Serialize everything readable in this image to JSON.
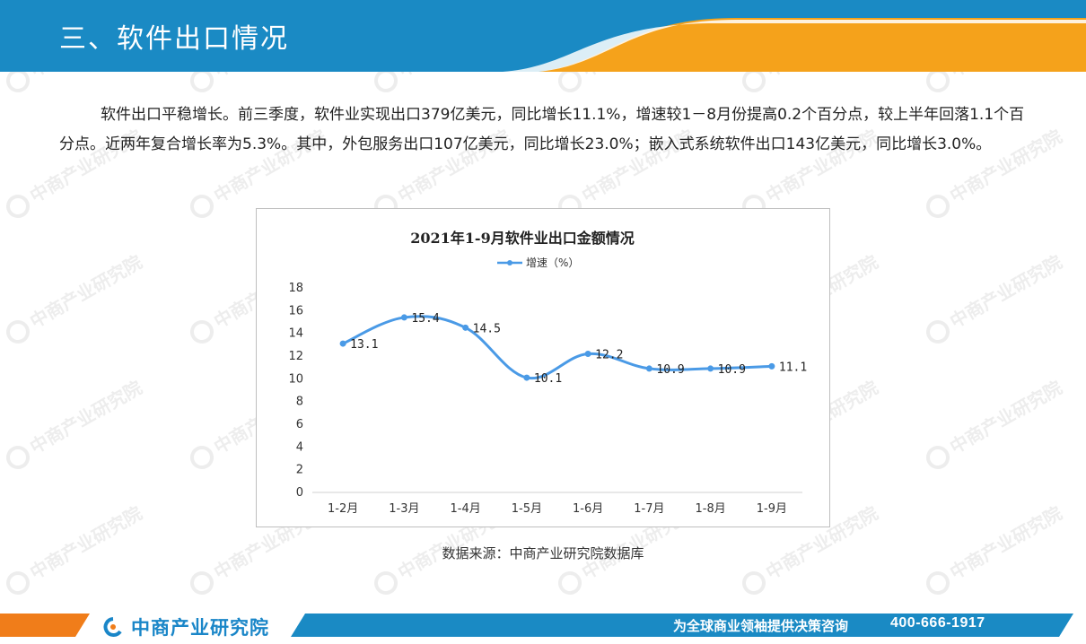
{
  "header": {
    "title": "三、软件出口情况",
    "colors": {
      "bar": "#1a8ac4",
      "accent": "#f5a21b"
    }
  },
  "intro": {
    "text": "软件出口平稳增长。前三季度，软件业实现出口379亿美元，同比增长11.1%，增速较1－8月份提高0.2个百分点，较上半年回落1.1个百分点。近两年复合增长率为5.3%。其中，外包服务出口107亿美元，同比增长23.0%；嵌入式系统软件出口143亿美元，同比增长3.0%。"
  },
  "chart_data": {
    "type": "line",
    "title": "2021年1-9月软件业出口金额情况",
    "categories": [
      "1-2月",
      "1-3月",
      "1-4月",
      "1-5月",
      "1-6月",
      "1-7月",
      "1-8月",
      "1-9月"
    ],
    "series": [
      {
        "name": "增速（%）",
        "values": [
          13.1,
          15.4,
          14.5,
          10.1,
          12.2,
          10.9,
          10.9,
          11.1
        ],
        "color": "#4a9ae6"
      }
    ],
    "data_labels": [
      "13.1",
      "15.4",
      "14.5",
      "10.1",
      "12.2",
      "10.9",
      "10.9",
      "11.1"
    ],
    "y_ticks": [
      "0",
      "2",
      "4",
      "6",
      "8",
      "10",
      "12",
      "14",
      "16",
      "18"
    ],
    "ylim": [
      0,
      18
    ],
    "grid": false,
    "legend_position": "top-center",
    "smooth": true
  },
  "source": {
    "text": "数据来源：中商产业研究院数据库"
  },
  "footer": {
    "brand": "中商产业研究院",
    "slogan": "为全球商业领袖提供决策咨询",
    "phone": "400-666-1917",
    "colors": {
      "bar": "#1a8ac4",
      "accent": "#f07d1a",
      "brand_text": "#1a86c8"
    }
  },
  "icons": {
    "brand_logo": "brand-logo-icon"
  }
}
